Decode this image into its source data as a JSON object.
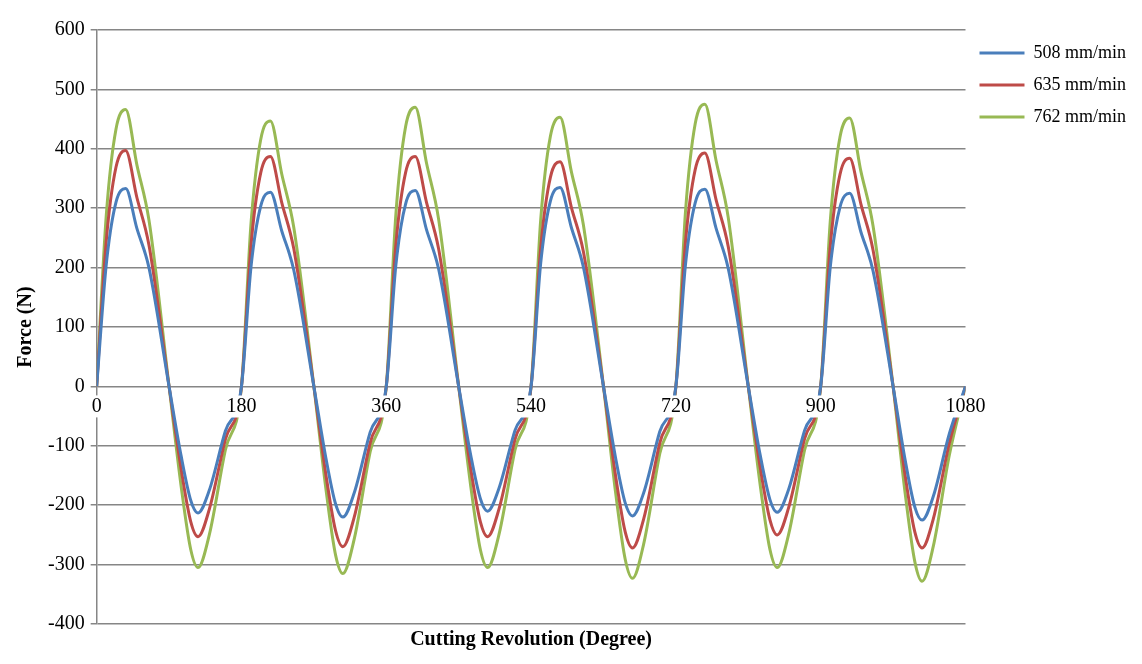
{
  "chart_data": {
    "type": "line",
    "xlabel": "Cutting Revolution (Degree)",
    "ylabel": "Force (N)",
    "x": [
      0,
      12,
      24,
      36,
      50,
      65,
      90,
      105,
      117,
      126,
      140,
      160,
      180,
      192,
      204,
      216,
      230,
      245,
      270,
      285,
      297,
      306,
      320,
      340,
      360,
      372,
      384,
      396,
      410,
      425,
      450,
      465,
      477,
      486,
      500,
      520,
      540,
      552,
      564,
      576,
      590,
      605,
      630,
      645,
      657,
      666,
      680,
      700,
      720,
      732,
      744,
      756,
      770,
      785,
      810,
      825,
      837,
      846,
      860,
      880,
      900,
      912,
      924,
      936,
      950,
      965,
      990,
      1005,
      1017,
      1026,
      1040,
      1060,
      1080
    ],
    "series": [
      {
        "name": "508 mm/min",
        "color": "#4a7ebb",
        "values": [
          0,
          206,
          310,
          333,
          266,
          200,
          0,
          -117,
          -192,
          -213,
          -175,
          -75,
          0,
          203,
          304,
          327,
          262,
          196,
          0,
          -121,
          -198,
          -220,
          -180,
          -77,
          0,
          205,
          307,
          330,
          264,
          198,
          0,
          -116,
          -189,
          -210,
          -172,
          -74,
          0,
          208,
          312,
          335,
          268,
          201,
          0,
          -120,
          -196,
          -218,
          -179,
          -76,
          0,
          206,
          309,
          332,
          266,
          199,
          0,
          -117,
          -191,
          -212,
          -174,
          -74,
          0,
          202,
          302,
          325,
          260,
          195,
          0,
          -124,
          -203,
          -225,
          -185,
          -79,
          0
        ]
      },
      {
        "name": "635 mm/min",
        "color": "#be4b48",
        "values": [
          0,
          246,
          369,
          397,
          318,
          238,
          0,
          -139,
          -228,
          -253,
          -207,
          -89,
          0,
          240,
          360,
          387,
          310,
          232,
          0,
          -149,
          -243,
          -270,
          -221,
          -95,
          0,
          240,
          360,
          387,
          310,
          232,
          0,
          -139,
          -228,
          -253,
          -207,
          -89,
          0,
          234,
          352,
          378,
          302,
          227,
          0,
          -150,
          -245,
          -272,
          -223,
          -95,
          0,
          244,
          365,
          393,
          314,
          236,
          0,
          -138,
          -225,
          -250,
          -205,
          -88,
          0,
          238,
          357,
          384,
          307,
          230,
          0,
          -150,
          -245,
          -272,
          -223,
          -95,
          0
        ]
      },
      {
        "name": "762 mm/min",
        "color": "#98b954",
        "values": [
          0,
          289,
          433,
          466,
          373,
          280,
          0,
          -168,
          -275,
          -305,
          -250,
          -107,
          0,
          277,
          416,
          447,
          358,
          268,
          0,
          -173,
          -284,
          -315,
          -258,
          -110,
          0,
          291,
          437,
          470,
          376,
          282,
          0,
          -168,
          -275,
          -305,
          -250,
          -107,
          0,
          281,
          421,
          453,
          362,
          272,
          0,
          -178,
          -291,
          -323,
          -265,
          -113,
          0,
          295,
          442,
          475,
          380,
          285,
          0,
          -168,
          -275,
          -305,
          -250,
          -107,
          0,
          280,
          420,
          452,
          362,
          271,
          0,
          -180,
          -295,
          -328,
          -269,
          -115,
          0
        ]
      }
    ],
    "xlim": [
      0,
      1080
    ],
    "xticks": [
      0,
      180,
      360,
      540,
      720,
      900,
      1080
    ],
    "ylim": [
      -400,
      600
    ],
    "yticks": [
      -400,
      -300,
      -200,
      -100,
      0,
      100,
      200,
      300,
      400,
      500,
      600
    ],
    "grid": "y",
    "legend": "top right",
    "marker": "none",
    "line_style": "solid"
  }
}
